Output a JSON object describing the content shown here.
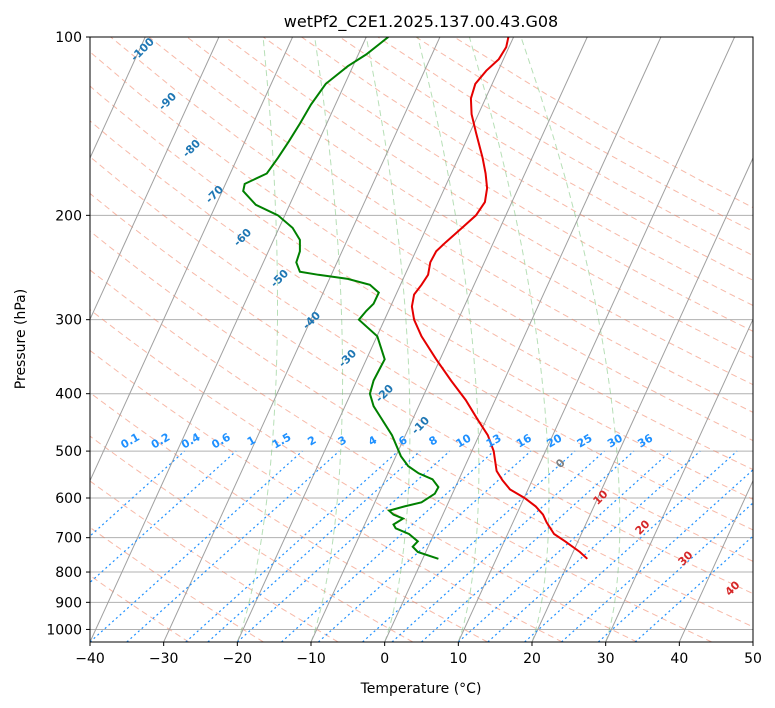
{
  "chart_data": {
    "type": "line",
    "title": "wetPf2_C2E1.2025.137.00.43.G08",
    "xlabel": "Temperature (°C)",
    "ylabel": "Pressure (hPa)",
    "xlim": [
      -40,
      50
    ],
    "ylim": [
      1050,
      100
    ],
    "y_scale": "log",
    "grid": true,
    "x_ticks": [
      "−40",
      "−30",
      "−20",
      "−10",
      "0",
      "10",
      "20",
      "30",
      "40",
      "50"
    ],
    "x_tick_values": [
      -40,
      -30,
      -20,
      -10,
      0,
      10,
      20,
      30,
      40,
      50
    ],
    "y_ticks": [
      "100",
      "200",
      "300",
      "400",
      "500",
      "600",
      "700",
      "800",
      "900",
      "1000"
    ],
    "y_tick_values": [
      100,
      200,
      300,
      400,
      500,
      600,
      700,
      800,
      900,
      1000
    ],
    "series": [
      {
        "role": "temperature",
        "color": "#e50000",
        "points": [
          [
            27.5,
            760
          ],
          [
            26.5,
            740
          ],
          [
            24.5,
            710
          ],
          [
            23,
            690
          ],
          [
            22,
            660
          ],
          [
            21.5,
            640
          ],
          [
            20.5,
            620
          ],
          [
            19,
            600
          ],
          [
            17,
            580
          ],
          [
            16,
            560
          ],
          [
            15.2,
            540
          ],
          [
            14.8,
            500
          ],
          [
            14,
            470
          ],
          [
            12.5,
            440
          ],
          [
            11,
            410
          ],
          [
            9,
            380
          ],
          [
            7,
            350
          ],
          [
            5,
            320
          ],
          [
            4,
            300
          ],
          [
            3.7,
            285
          ],
          [
            4,
            272
          ],
          [
            5,
            262
          ],
          [
            5.9,
            252
          ],
          [
            6.2,
            240
          ],
          [
            7,
            230
          ],
          [
            8.3,
            222
          ],
          [
            10.5,
            210
          ],
          [
            12.4,
            200
          ],
          [
            13.6,
            190
          ],
          [
            13.9,
            180
          ],
          [
            13.7,
            170
          ],
          [
            13.3,
            160
          ],
          [
            12.4,
            145
          ],
          [
            11.8,
            135
          ],
          [
            11.7,
            127
          ],
          [
            12.3,
            120
          ],
          [
            13.8,
            114
          ],
          [
            15.5,
            109
          ],
          [
            16.5,
            104
          ],
          [
            16.8,
            100
          ]
        ]
      },
      {
        "role": "dewpoint",
        "color": "#008000",
        "points": [
          [
            7.3,
            760
          ],
          [
            4.5,
            740
          ],
          [
            3.8,
            725
          ],
          [
            4.5,
            710
          ],
          [
            3.3,
            690
          ],
          [
            1.5,
            675
          ],
          [
            1.2,
            665
          ],
          [
            2.5,
            650
          ],
          [
            1.2,
            640
          ],
          [
            0.6,
            630
          ],
          [
            2.7,
            620
          ],
          [
            5,
            610
          ],
          [
            6.8,
            590
          ],
          [
            7.3,
            575
          ],
          [
            6.5,
            558
          ],
          [
            4.6,
            545
          ],
          [
            3.2,
            530
          ],
          [
            2.2,
            510
          ],
          [
            1,
            470
          ],
          [
            -1.5,
            420
          ],
          [
            -2,
            400
          ],
          [
            -1.5,
            380
          ],
          [
            0,
            350
          ],
          [
            -1,
            320
          ],
          [
            -3.5,
            300
          ],
          [
            -2.5,
            290
          ],
          [
            -1.5,
            282
          ],
          [
            -0.8,
            270
          ],
          [
            -2,
            262
          ],
          [
            -5,
            256
          ],
          [
            -9,
            252
          ],
          [
            -11.5,
            249
          ],
          [
            -12,
            240
          ],
          [
            -11.5,
            230
          ],
          [
            -11.5,
            220
          ],
          [
            -12.5,
            210
          ],
          [
            -14.5,
            200
          ],
          [
            -17.5,
            192
          ],
          [
            -19.2,
            182
          ],
          [
            -19,
            177
          ],
          [
            -16,
            170
          ],
          [
            -14.5,
            160
          ],
          [
            -13,
            150
          ],
          [
            -11.5,
            140
          ],
          [
            -10,
            130
          ],
          [
            -8,
            120
          ],
          [
            -5,
            112
          ],
          [
            -2.5,
            107
          ],
          [
            0.5,
            100
          ]
        ]
      }
    ],
    "isotherm_labels": [
      "-100",
      "-90",
      "-80",
      "-70",
      "-60",
      "-50",
      "-40",
      "-30",
      "-20",
      "-10"
    ],
    "mixing_ratio_labels": [
      "0.1",
      "0.2",
      "0.4",
      "0.6",
      "1",
      "1.5",
      "2",
      "3",
      "4",
      "6",
      "8",
      "10",
      "13",
      "16",
      "20",
      "25",
      "30",
      "36"
    ],
    "moist_adiabat_labels": [
      "0",
      "10",
      "20",
      "30",
      "40"
    ],
    "colors": {
      "temperature": "#e50000",
      "dewpoint": "#008000",
      "isotherm_label": "#1f77b4",
      "mixing_ratio": "#1e90ff",
      "dry_adiabat": "#f08060",
      "moist_adiabat": "#7bc47b",
      "thin_isotherm": "#a0a0a0",
      "tan_curve": "#d2b48c",
      "moist_label": "#d62728",
      "zero_label": "#808080"
    }
  }
}
